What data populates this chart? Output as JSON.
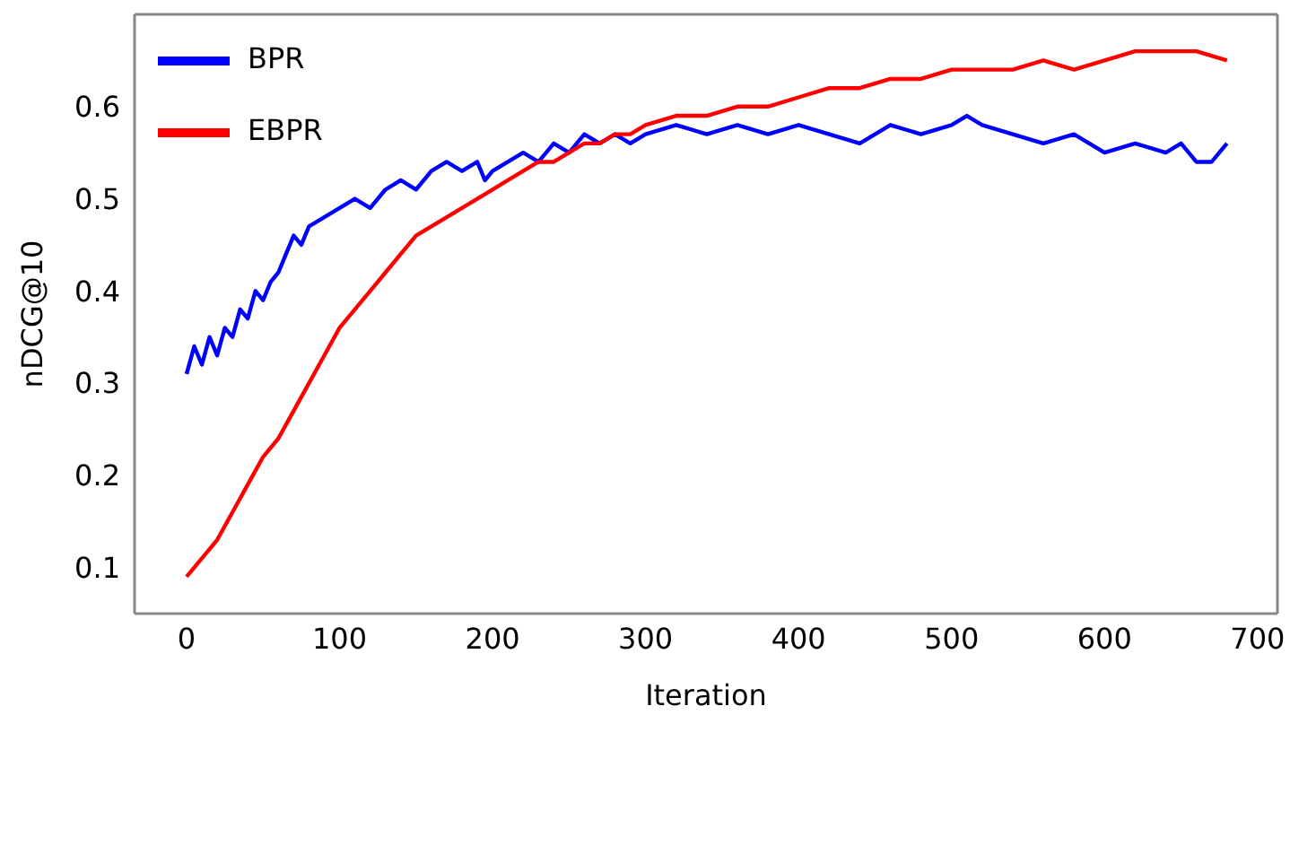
{
  "chart_data": {
    "type": "line",
    "xlabel": "Iteration",
    "ylabel": "nDCG@10",
    "xlim": [
      -34,
      713
    ],
    "ylim": [
      0.05,
      0.7
    ],
    "xticks": [
      0,
      100,
      200,
      300,
      400,
      500,
      600,
      700
    ],
    "yticks": [
      0.1,
      0.2,
      0.3,
      0.4,
      0.5,
      0.6
    ],
    "grid": false,
    "legend": "top left",
    "marker": "none",
    "line_style": "solid",
    "series": [
      {
        "name": "BPR",
        "color": "#0000ff",
        "x": [
          0,
          5,
          10,
          15,
          20,
          25,
          30,
          35,
          40,
          45,
          50,
          55,
          60,
          65,
          70,
          75,
          80,
          90,
          100,
          110,
          120,
          130,
          140,
          150,
          160,
          170,
          180,
          190,
          195,
          200,
          210,
          220,
          230,
          240,
          250,
          260,
          270,
          280,
          290,
          300,
          320,
          340,
          360,
          380,
          400,
          420,
          440,
          460,
          480,
          500,
          510,
          520,
          540,
          560,
          580,
          600,
          620,
          640,
          650,
          660,
          670,
          680
        ],
        "values": [
          0.31,
          0.34,
          0.32,
          0.35,
          0.33,
          0.36,
          0.35,
          0.38,
          0.37,
          0.4,
          0.39,
          0.41,
          0.42,
          0.44,
          0.46,
          0.45,
          0.47,
          0.48,
          0.49,
          0.5,
          0.49,
          0.51,
          0.52,
          0.51,
          0.53,
          0.54,
          0.53,
          0.54,
          0.52,
          0.53,
          0.54,
          0.55,
          0.54,
          0.56,
          0.55,
          0.57,
          0.56,
          0.57,
          0.56,
          0.57,
          0.58,
          0.57,
          0.58,
          0.57,
          0.58,
          0.57,
          0.56,
          0.58,
          0.57,
          0.58,
          0.59,
          0.58,
          0.57,
          0.56,
          0.57,
          0.55,
          0.56,
          0.55,
          0.56,
          0.54,
          0.54,
          0.56
        ]
      },
      {
        "name": "EBPR",
        "color": "#ff0000",
        "x": [
          0,
          10,
          20,
          30,
          40,
          50,
          60,
          70,
          80,
          90,
          100,
          110,
          120,
          130,
          140,
          150,
          160,
          170,
          180,
          190,
          200,
          210,
          220,
          230,
          240,
          250,
          260,
          270,
          280,
          290,
          300,
          320,
          340,
          360,
          380,
          400,
          420,
          440,
          460,
          480,
          500,
          520,
          540,
          560,
          580,
          600,
          620,
          640,
          660,
          680
        ],
        "values": [
          0.09,
          0.11,
          0.13,
          0.16,
          0.19,
          0.22,
          0.24,
          0.27,
          0.3,
          0.33,
          0.36,
          0.38,
          0.4,
          0.42,
          0.44,
          0.46,
          0.47,
          0.48,
          0.49,
          0.5,
          0.51,
          0.52,
          0.53,
          0.54,
          0.54,
          0.55,
          0.56,
          0.56,
          0.57,
          0.57,
          0.58,
          0.59,
          0.59,
          0.6,
          0.6,
          0.61,
          0.62,
          0.62,
          0.63,
          0.63,
          0.64,
          0.64,
          0.64,
          0.65,
          0.64,
          0.65,
          0.66,
          0.66,
          0.66,
          0.65
        ]
      }
    ]
  }
}
